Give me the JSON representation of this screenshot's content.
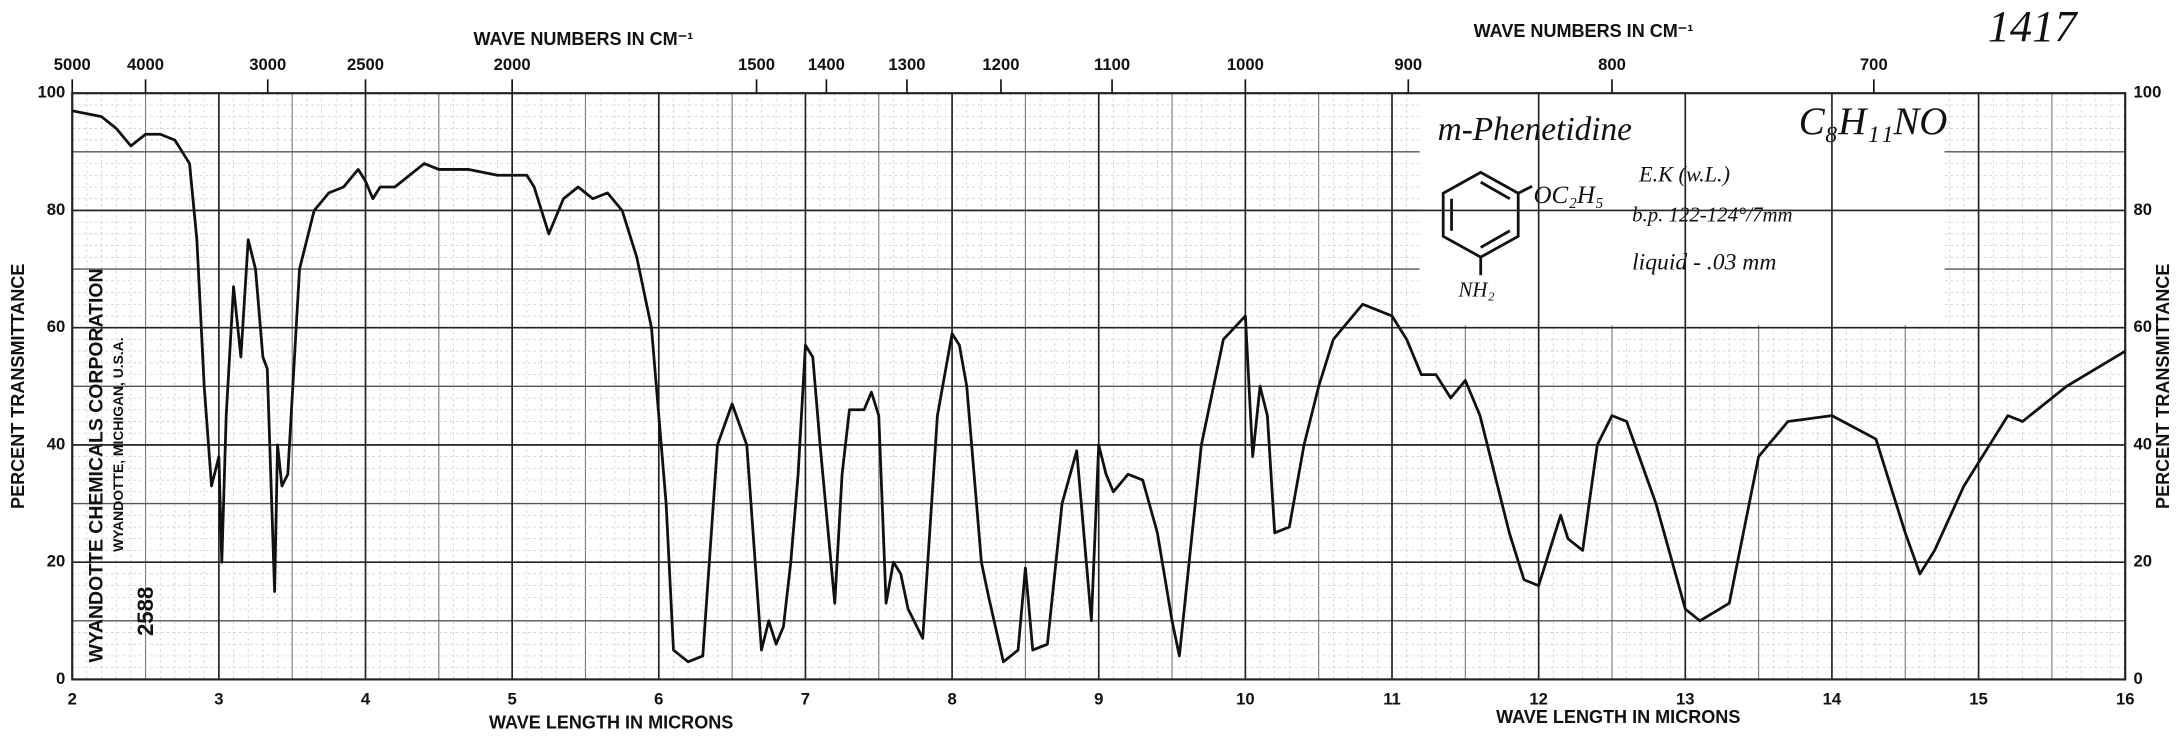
{
  "chart_data": {
    "type": "line",
    "sample_number": "1417",
    "compound": "m-Phenetidine",
    "formula": "C₈H₁₁NO",
    "substituent": "OC₂H₅",
    "amine": "NH₂",
    "notes": [
      "E.K (w.L.)",
      "b.p. 122-124°/7mm",
      "liquid - .03 mm"
    ],
    "company": "WYANDOTTE CHEMICALS CORPORATION",
    "location": "WYANDOTTE, MICHIGAN, U.S.A.",
    "chart_number": "2588",
    "x_label": "WAVE LENGTH IN MICRONS",
    "x2_label": "WAVE NUMBERS IN CM⁻¹",
    "y_label": "PERCENT TRANSMITTANCE",
    "xlim": [
      2,
      16
    ],
    "xticks": [
      2,
      3,
      4,
      5,
      6,
      7,
      8,
      9,
      10,
      11,
      12,
      13,
      14,
      15,
      16
    ],
    "x2ticks": [
      5000,
      4000,
      3000,
      2500,
      2000,
      1500,
      1400,
      1300,
      1200,
      1100,
      1000,
      900,
      800,
      700
    ],
    "ylim": [
      0,
      100
    ],
    "yticks": [
      0,
      20,
      40,
      60,
      80,
      100
    ],
    "grid": true,
    "color": "#111111",
    "x": [
      2.0,
      2.2,
      2.3,
      2.4,
      2.5,
      2.6,
      2.7,
      2.8,
      2.85,
      2.9,
      2.95,
      3.0,
      3.02,
      3.05,
      3.1,
      3.15,
      3.2,
      3.25,
      3.3,
      3.33,
      3.38,
      3.4,
      3.43,
      3.47,
      3.55,
      3.65,
      3.75,
      3.85,
      3.95,
      4.0,
      4.05,
      4.1,
      4.2,
      4.3,
      4.4,
      4.5,
      4.7,
      4.9,
      5.1,
      5.15,
      5.25,
      5.35,
      5.45,
      5.55,
      5.65,
      5.75,
      5.85,
      5.95,
      6.05,
      6.1,
      6.2,
      6.3,
      6.4,
      6.5,
      6.6,
      6.7,
      6.75,
      6.8,
      6.85,
      6.9,
      6.95,
      7.0,
      7.05,
      7.1,
      7.2,
      7.25,
      7.3,
      7.4,
      7.45,
      7.5,
      7.55,
      7.6,
      7.65,
      7.7,
      7.8,
      7.9,
      8.0,
      8.05,
      8.1,
      8.2,
      8.25,
      8.35,
      8.45,
      8.5,
      8.55,
      8.65,
      8.75,
      8.85,
      8.95,
      9.0,
      9.05,
      9.1,
      9.2,
      9.3,
      9.4,
      9.5,
      9.55,
      9.7,
      9.85,
      10.0,
      10.05,
      10.1,
      10.15,
      10.2,
      10.3,
      10.4,
      10.5,
      10.6,
      10.8,
      11.0,
      11.1,
      11.2,
      11.3,
      11.4,
      11.5,
      11.6,
      11.8,
      11.9,
      12.0,
      12.1,
      12.15,
      12.2,
      12.3,
      12.4,
      12.5,
      12.6,
      12.8,
      13.0,
      13.1,
      13.3,
      13.5,
      13.7,
      14.0,
      14.3,
      14.5,
      14.6,
      14.7,
      14.9,
      15.1,
      15.2,
      15.3,
      15.6,
      16.0
    ],
    "values": [
      97,
      96,
      94,
      91,
      93,
      93,
      92,
      88,
      75,
      50,
      33,
      38,
      20,
      45,
      67,
      55,
      75,
      70,
      55,
      53,
      15,
      40,
      33,
      35,
      70,
      80,
      83,
      84,
      87,
      85,
      82,
      84,
      84,
      86,
      88,
      87,
      87,
      86,
      86,
      84,
      76,
      82,
      84,
      82,
      83,
      80,
      72,
      60,
      30,
      5,
      3,
      4,
      40,
      47,
      40,
      5,
      10,
      6,
      9,
      20,
      35,
      57,
      55,
      40,
      13,
      35,
      46,
      46,
      49,
      45,
      13,
      20,
      18,
      12,
      7,
      45,
      59,
      57,
      50,
      20,
      14,
      3,
      5,
      19,
      5,
      6,
      30,
      39,
      10,
      40,
      35,
      32,
      35,
      34,
      25,
      10,
      4,
      40,
      58,
      62,
      38,
      50,
      45,
      25,
      26,
      40,
      50,
      58,
      64,
      62,
      58,
      52,
      52,
      48,
      51,
      45,
      25,
      17,
      16,
      24,
      28,
      24,
      22,
      40,
      45,
      44,
      30,
      12,
      10,
      13,
      38,
      44,
      45,
      41,
      25,
      18,
      22,
      33,
      41,
      45,
      44,
      50,
      56
    ]
  }
}
